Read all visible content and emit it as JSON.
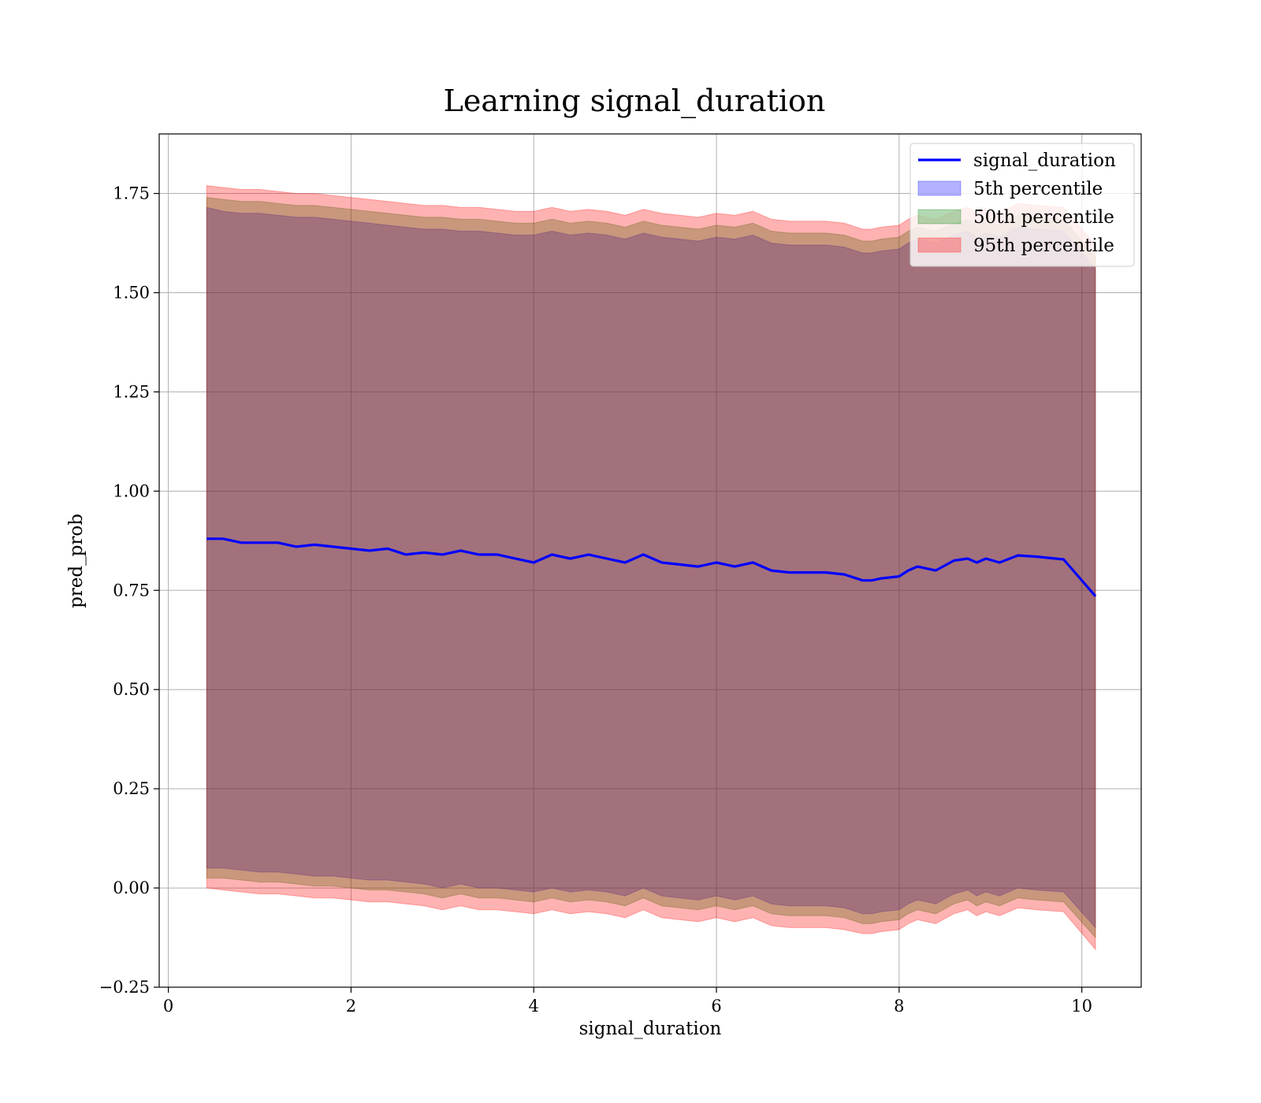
{
  "chart_data": {
    "type": "area",
    "title": "Learning signal_duration",
    "xlabel": "signal_duration",
    "ylabel": "pred_prob",
    "xlim": [
      -0.1,
      10.65
    ],
    "ylim": [
      -0.25,
      1.9
    ],
    "xticks": [
      0,
      2,
      4,
      6,
      8,
      10
    ],
    "xtick_labels": [
      "0",
      "2",
      "4",
      "6",
      "8",
      "10"
    ],
    "yticks": [
      -0.25,
      0.0,
      0.25,
      0.5,
      0.75,
      1.0,
      1.25,
      1.5,
      1.75
    ],
    "ytick_labels": [
      "−0.25",
      "0.00",
      "0.25",
      "0.50",
      "0.75",
      "1.00",
      "1.25",
      "1.50",
      "1.75"
    ],
    "grid": true,
    "legend": "top-right",
    "x": [
      0.42,
      0.6,
      0.8,
      1.0,
      1.2,
      1.4,
      1.6,
      1.8,
      2.0,
      2.2,
      2.4,
      2.6,
      2.8,
      3.0,
      3.2,
      3.4,
      3.6,
      3.8,
      4.0,
      4.2,
      4.4,
      4.6,
      4.8,
      5.0,
      5.2,
      5.4,
      5.6,
      5.8,
      6.0,
      6.2,
      6.4,
      6.6,
      6.8,
      7.0,
      7.2,
      7.4,
      7.6,
      7.7,
      7.8,
      8.0,
      8.1,
      8.2,
      8.4,
      8.6,
      8.75,
      8.85,
      8.95,
      9.1,
      9.3,
      9.5,
      9.8,
      10.15
    ],
    "series": [
      {
        "name": "signal_duration",
        "kind": "line",
        "color": "#0000ff",
        "values": [
          0.88,
          0.88,
          0.87,
          0.87,
          0.87,
          0.86,
          0.865,
          0.86,
          0.855,
          0.85,
          0.855,
          0.84,
          0.845,
          0.84,
          0.85,
          0.84,
          0.84,
          0.83,
          0.82,
          0.84,
          0.83,
          0.84,
          0.83,
          0.82,
          0.84,
          0.82,
          0.815,
          0.81,
          0.82,
          0.81,
          0.82,
          0.8,
          0.795,
          0.795,
          0.795,
          0.79,
          0.775,
          0.775,
          0.78,
          0.785,
          0.8,
          0.81,
          0.8,
          0.825,
          0.83,
          0.82,
          0.83,
          0.82,
          0.838,
          0.835,
          0.828,
          0.735
        ]
      },
      {
        "name": "5th percentile",
        "kind": "band",
        "color": "#0000ff",
        "upper": [
          1.715,
          1.705,
          1.7,
          1.7,
          1.695,
          1.69,
          1.69,
          1.685,
          1.68,
          1.675,
          1.67,
          1.665,
          1.66,
          1.66,
          1.655,
          1.655,
          1.65,
          1.645,
          1.645,
          1.655,
          1.645,
          1.65,
          1.645,
          1.635,
          1.65,
          1.64,
          1.635,
          1.63,
          1.64,
          1.635,
          1.645,
          1.625,
          1.62,
          1.62,
          1.62,
          1.615,
          1.6,
          1.6,
          1.605,
          1.61,
          1.625,
          1.635,
          1.625,
          1.645,
          1.655,
          1.64,
          1.65,
          1.64,
          1.665,
          1.66,
          1.655,
          1.56
        ],
        "lower": [
          0.05,
          0.05,
          0.045,
          0.04,
          0.04,
          0.035,
          0.03,
          0.03,
          0.025,
          0.02,
          0.02,
          0.015,
          0.01,
          0.0,
          0.01,
          0.0,
          0.0,
          -0.005,
          -0.01,
          0.0,
          -0.01,
          -0.005,
          -0.01,
          -0.02,
          0.0,
          -0.02,
          -0.025,
          -0.03,
          -0.02,
          -0.03,
          -0.02,
          -0.04,
          -0.045,
          -0.045,
          -0.045,
          -0.05,
          -0.065,
          -0.065,
          -0.06,
          -0.055,
          -0.04,
          -0.03,
          -0.04,
          -0.015,
          -0.005,
          -0.02,
          -0.01,
          -0.02,
          0.0,
          -0.005,
          -0.01,
          -0.1
        ]
      },
      {
        "name": "50th percentile",
        "kind": "band",
        "color": "#008000",
        "upper": [
          1.74,
          1.735,
          1.73,
          1.73,
          1.725,
          1.72,
          1.72,
          1.715,
          1.71,
          1.705,
          1.7,
          1.695,
          1.69,
          1.69,
          1.685,
          1.685,
          1.68,
          1.675,
          1.675,
          1.685,
          1.675,
          1.68,
          1.675,
          1.665,
          1.68,
          1.67,
          1.665,
          1.66,
          1.67,
          1.665,
          1.675,
          1.655,
          1.65,
          1.65,
          1.65,
          1.645,
          1.63,
          1.63,
          1.635,
          1.64,
          1.655,
          1.665,
          1.655,
          1.675,
          1.685,
          1.67,
          1.68,
          1.67,
          1.695,
          1.69,
          1.685,
          1.59
        ],
        "lower": [
          0.025,
          0.025,
          0.02,
          0.015,
          0.015,
          0.01,
          0.005,
          0.005,
          0.0,
          -0.005,
          -0.005,
          -0.01,
          -0.015,
          -0.025,
          -0.015,
          -0.025,
          -0.025,
          -0.03,
          -0.035,
          -0.025,
          -0.035,
          -0.03,
          -0.035,
          -0.045,
          -0.025,
          -0.045,
          -0.05,
          -0.055,
          -0.045,
          -0.055,
          -0.045,
          -0.065,
          -0.07,
          -0.07,
          -0.07,
          -0.075,
          -0.09,
          -0.09,
          -0.085,
          -0.08,
          -0.065,
          -0.055,
          -0.065,
          -0.04,
          -0.03,
          -0.045,
          -0.035,
          -0.045,
          -0.025,
          -0.03,
          -0.035,
          -0.125
        ]
      },
      {
        "name": "95th percentile",
        "kind": "band",
        "color": "#ff0000",
        "upper": [
          1.77,
          1.765,
          1.76,
          1.76,
          1.755,
          1.75,
          1.75,
          1.745,
          1.74,
          1.735,
          1.73,
          1.725,
          1.72,
          1.72,
          1.715,
          1.715,
          1.71,
          1.705,
          1.705,
          1.715,
          1.705,
          1.71,
          1.705,
          1.695,
          1.71,
          1.7,
          1.695,
          1.69,
          1.7,
          1.695,
          1.705,
          1.685,
          1.68,
          1.68,
          1.68,
          1.675,
          1.66,
          1.66,
          1.665,
          1.67,
          1.685,
          1.695,
          1.685,
          1.705,
          1.715,
          1.7,
          1.71,
          1.7,
          1.725,
          1.72,
          1.715,
          1.62
        ],
        "lower": [
          0.0,
          -0.005,
          -0.01,
          -0.015,
          -0.015,
          -0.02,
          -0.025,
          -0.025,
          -0.03,
          -0.035,
          -0.035,
          -0.04,
          -0.045,
          -0.055,
          -0.045,
          -0.055,
          -0.055,
          -0.06,
          -0.065,
          -0.055,
          -0.065,
          -0.06,
          -0.065,
          -0.075,
          -0.055,
          -0.075,
          -0.08,
          -0.085,
          -0.075,
          -0.085,
          -0.075,
          -0.095,
          -0.1,
          -0.1,
          -0.1,
          -0.105,
          -0.115,
          -0.115,
          -0.11,
          -0.105,
          -0.09,
          -0.08,
          -0.09,
          -0.065,
          -0.055,
          -0.07,
          -0.06,
          -0.07,
          -0.05,
          -0.055,
          -0.06,
          -0.155
        ]
      }
    ]
  }
}
